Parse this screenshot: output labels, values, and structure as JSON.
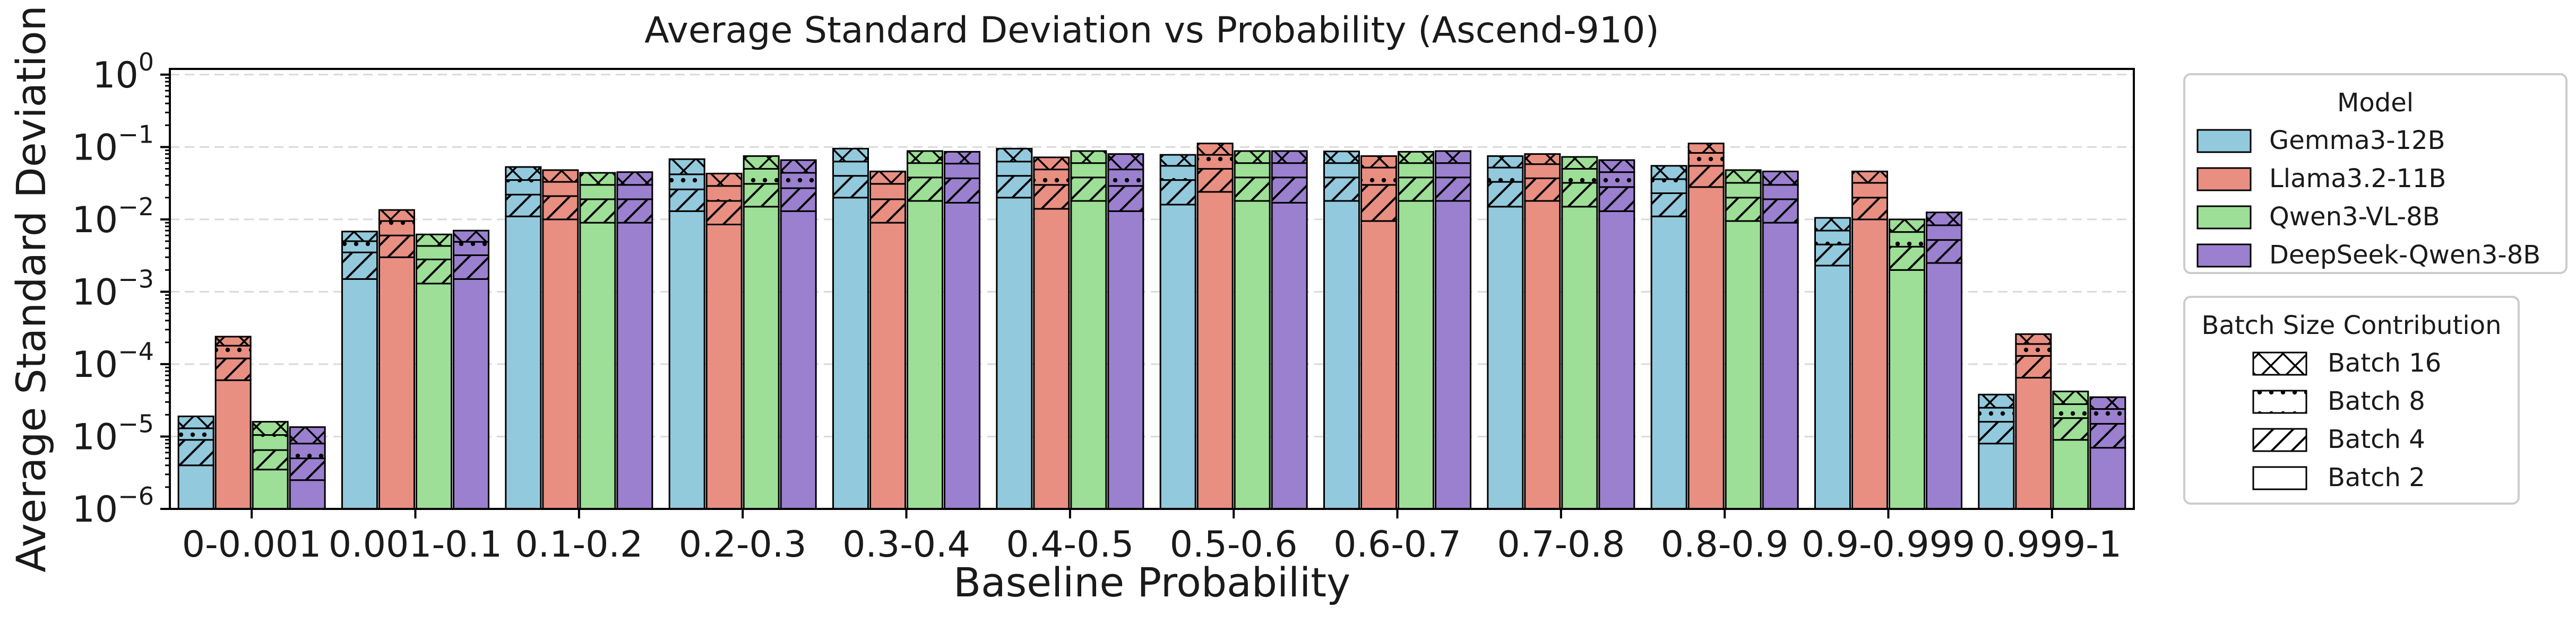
{
  "chart_data": {
    "type": "bar",
    "title": "Average Standard Deviation vs Probability (Ascend-910)",
    "xlabel": "Baseline Probability",
    "ylabel": "Average Standard Deviation",
    "yscale": "log",
    "ylim": [
      1e-06,
      1.2
    ],
    "grid": "y, dashed",
    "y_ticks": [
      {
        "value": 1e-06,
        "base": "10",
        "exp": "−6"
      },
      {
        "value": 1e-05,
        "base": "10",
        "exp": "−5"
      },
      {
        "value": 0.0001,
        "base": "10",
        "exp": "−4"
      },
      {
        "value": 0.001,
        "base": "10",
        "exp": "−3"
      },
      {
        "value": 0.01,
        "base": "10",
        "exp": "−2"
      },
      {
        "value": 0.1,
        "base": "10",
        "exp": "−1"
      },
      {
        "value": 1,
        "base": "10",
        "exp": "0"
      }
    ],
    "categories": [
      "0-0.001",
      "0.001-0.1",
      "0.1-0.2",
      "0.2-0.3",
      "0.3-0.4",
      "0.4-0.5",
      "0.5-0.6",
      "0.6-0.7",
      "0.7-0.8",
      "0.8-0.9",
      "0.9-0.999",
      "0.999-1"
    ],
    "segment_order": [
      "Batch 2",
      "Batch 4",
      "Batch 8",
      "Batch 16"
    ],
    "series": [
      {
        "name": "Gemma3-12B",
        "color": "#92c9dd",
        "values": [
          [
            4e-06,
            9e-06,
            1.3e-05,
            1.9e-05
          ],
          [
            0.0015,
            0.0035,
            0.005,
            0.0068
          ],
          [
            0.011,
            0.022,
            0.035,
            0.053
          ],
          [
            0.013,
            0.026,
            0.042,
            0.068
          ],
          [
            0.02,
            0.04,
            0.063,
            0.095
          ],
          [
            0.02,
            0.04,
            0.063,
            0.095
          ],
          [
            0.016,
            0.035,
            0.055,
            0.078
          ],
          [
            0.018,
            0.038,
            0.06,
            0.087
          ],
          [
            0.015,
            0.033,
            0.052,
            0.075
          ],
          [
            0.011,
            0.023,
            0.036,
            0.055
          ],
          [
            0.0023,
            0.0045,
            0.007,
            0.0105
          ],
          [
            8e-06,
            1.6e-05,
            2.5e-05,
            3.8e-05
          ]
        ]
      },
      {
        "name": "Llama3.2-11B",
        "color": "#e88f82",
        "values": [
          [
            6e-05,
            0.00012,
            0.00018,
            0.00024
          ],
          [
            0.003,
            0.006,
            0.0095,
            0.0135
          ],
          [
            0.01,
            0.021,
            0.033,
            0.048
          ],
          [
            0.0085,
            0.018,
            0.029,
            0.043
          ],
          [
            0.009,
            0.019,
            0.031,
            0.046
          ],
          [
            0.014,
            0.03,
            0.049,
            0.072
          ],
          [
            0.024,
            0.05,
            0.078,
            0.112
          ],
          [
            0.0095,
            0.03,
            0.052,
            0.075
          ],
          [
            0.018,
            0.037,
            0.058,
            0.08
          ],
          [
            0.028,
            0.055,
            0.083,
            0.112
          ],
          [
            0.01,
            0.02,
            0.032,
            0.046
          ],
          [
            6.5e-05,
            0.00013,
            0.00019,
            0.00026
          ]
        ]
      },
      {
        "name": "Qwen3-VL-8B",
        "color": "#9ddf96",
        "values": [
          [
            3.5e-06,
            6.5e-06,
            1.05e-05,
            1.6e-05
          ],
          [
            0.0013,
            0.0028,
            0.0043,
            0.0062
          ],
          [
            0.009,
            0.019,
            0.03,
            0.044
          ],
          [
            0.015,
            0.031,
            0.05,
            0.075
          ],
          [
            0.018,
            0.038,
            0.06,
            0.088
          ],
          [
            0.018,
            0.038,
            0.06,
            0.088
          ],
          [
            0.018,
            0.038,
            0.06,
            0.088
          ],
          [
            0.018,
            0.038,
            0.06,
            0.086
          ],
          [
            0.015,
            0.032,
            0.05,
            0.073
          ],
          [
            0.0095,
            0.02,
            0.032,
            0.048
          ],
          [
            0.002,
            0.0042,
            0.0067,
            0.01
          ],
          [
            9e-06,
            1.8e-05,
            2.8e-05,
            4.2e-05
          ]
        ]
      },
      {
        "name": "DeepSeek-Qwen3-8B",
        "color": "#9b80cf",
        "values": [
          [
            2.5e-06,
            5e-06,
            8e-06,
            1.35e-05
          ],
          [
            0.0015,
            0.0032,
            0.0049,
            0.007
          ],
          [
            0.009,
            0.019,
            0.03,
            0.045
          ],
          [
            0.013,
            0.027,
            0.044,
            0.066
          ],
          [
            0.017,
            0.037,
            0.059,
            0.086
          ],
          [
            0.013,
            0.029,
            0.049,
            0.08
          ],
          [
            0.017,
            0.038,
            0.06,
            0.088
          ],
          [
            0.018,
            0.038,
            0.06,
            0.088
          ],
          [
            0.013,
            0.028,
            0.045,
            0.066
          ],
          [
            0.009,
            0.019,
            0.03,
            0.046
          ],
          [
            0.0025,
            0.0052,
            0.0083,
            0.0125
          ],
          [
            7e-06,
            1.5e-05,
            2.4e-05,
            3.5e-05
          ]
        ]
      }
    ],
    "legends": [
      {
        "title": "Model",
        "entries": [
          "Gemma3-12B",
          "Llama3.2-11B",
          "Qwen3-VL-8B",
          "DeepSeek-Qwen3-8B"
        ]
      },
      {
        "title": "Batch Size Contribution",
        "entries": [
          "Batch 16",
          "Batch 8",
          "Batch 4",
          "Batch 2"
        ]
      }
    ],
    "legend_position": "right, outside"
  }
}
